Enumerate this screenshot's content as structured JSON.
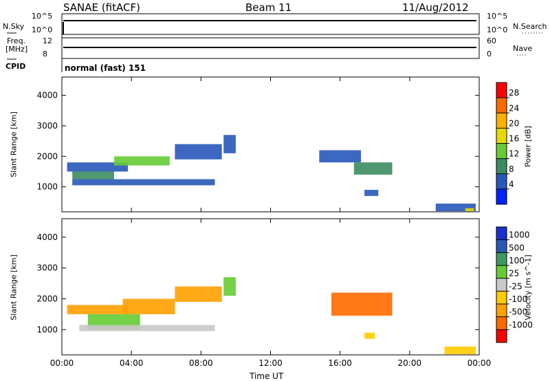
{
  "header": {
    "title": "SANAE (fitACF)",
    "beam": "Beam 11",
    "date": "11/Aug/2012"
  },
  "status_panels": {
    "nsky_label": "N.Sky",
    "nsearch_label": "N.Search",
    "noise_ticks_left": [
      "10^5",
      "10^0"
    ],
    "noise_ticks_right": [
      "10^5",
      "10^0"
    ],
    "freq_label": "Freq.",
    "freq_unit": "[MHz]",
    "freq_ticks": [
      "12",
      "8"
    ],
    "nave_label": "Nave",
    "nave_ticks": [
      "60",
      "0"
    ],
    "cpid_label": "CPID",
    "cpid_value": "normal (fast) 151"
  },
  "chart_data": [
    {
      "type": "heatmap",
      "name": "power",
      "ylabel": "Slant Range [km]",
      "xlabel": "Time UT",
      "yticks": [
        "4000",
        "3000",
        "2000",
        "1000"
      ],
      "ylim": [
        180,
        4600
      ],
      "xlim": [
        0,
        24
      ],
      "xticks": [
        "00:00",
        "04:00",
        "08:00",
        "12:00",
        "16:00",
        "20:00",
        "00:00"
      ],
      "colorbar": {
        "label": "Power [dB]",
        "ticks": [
          "28",
          "24",
          "20",
          "16",
          "12",
          "8",
          "4"
        ],
        "colors": [
          "#ff0000",
          "#ff6a00",
          "#ffb000",
          "#e8d800",
          "#66cc33",
          "#3c8c60",
          "#2858b8",
          "#0020ff"
        ]
      },
      "regions": [
        {
          "t0": 0.3,
          "t1": 3.8,
          "r0": 1500,
          "r1": 1800,
          "color": "#2858b8"
        },
        {
          "t0": 0.6,
          "t1": 3.0,
          "r0": 1250,
          "r1": 1500,
          "color": "#3c8c60"
        },
        {
          "t0": 0.6,
          "t1": 8.8,
          "r0": 1050,
          "r1": 1250,
          "color": "#2858b8"
        },
        {
          "t0": 3.0,
          "t1": 6.2,
          "r0": 1700,
          "r1": 2000,
          "color": "#66cc33"
        },
        {
          "t0": 6.5,
          "t1": 9.2,
          "r0": 1900,
          "r1": 2400,
          "color": "#2858b8"
        },
        {
          "t0": 9.3,
          "t1": 10.0,
          "r0": 2100,
          "r1": 2700,
          "color": "#2858b8"
        },
        {
          "t0": 14.8,
          "t1": 17.2,
          "r0": 1800,
          "r1": 2200,
          "color": "#2858b8"
        },
        {
          "t0": 16.8,
          "t1": 19.0,
          "r0": 1400,
          "r1": 1800,
          "color": "#3c8c60"
        },
        {
          "t0": 17.4,
          "t1": 18.2,
          "r0": 700,
          "r1": 900,
          "color": "#2858b8"
        },
        {
          "t0": 21.5,
          "t1": 23.8,
          "r0": 200,
          "r1": 450,
          "color": "#2858b8"
        },
        {
          "t0": 23.2,
          "t1": 23.7,
          "r0": 200,
          "r1": 300,
          "color": "#e8d800"
        }
      ]
    },
    {
      "type": "heatmap",
      "name": "velocity",
      "ylabel": "Slant Range [km]",
      "xlabel": "Time UT",
      "yticks": [
        "4000",
        "3000",
        "2000",
        "1000"
      ],
      "ylim": [
        180,
        4600
      ],
      "xlim": [
        0,
        24
      ],
      "xticks": [
        "00:00",
        "04:00",
        "08:00",
        "12:00",
        "16:00",
        "20:00",
        "00:00"
      ],
      "colorbar": {
        "label": "Velocity [m s^-1]",
        "ticks": [
          "1000",
          "500",
          "100",
          "25",
          "-25",
          "-100",
          "-500",
          "-1000"
        ],
        "colors": [
          "#1830d0",
          "#2858b8",
          "#3c9a60",
          "#66cc33",
          "#c8c8c8",
          "#ffcc00",
          "#ffa000",
          "#ff6a00",
          "#ff0000"
        ]
      },
      "regions": [
        {
          "t0": 0.3,
          "t1": 3.8,
          "r0": 1500,
          "r1": 1800,
          "color": "#ffa000"
        },
        {
          "t0": 1.5,
          "t1": 4.5,
          "r0": 1000,
          "r1": 1500,
          "color": "#66cc33"
        },
        {
          "t0": 1.0,
          "t1": 8.8,
          "r0": 950,
          "r1": 1150,
          "color": "#c8c8c8"
        },
        {
          "t0": 3.5,
          "t1": 6.5,
          "r0": 1500,
          "r1": 2000,
          "color": "#ffa000"
        },
        {
          "t0": 6.5,
          "t1": 9.2,
          "r0": 1900,
          "r1": 2400,
          "color": "#ffa000"
        },
        {
          "t0": 9.3,
          "t1": 10.0,
          "r0": 2100,
          "r1": 2700,
          "color": "#66cc33"
        },
        {
          "t0": 15.5,
          "t1": 19.0,
          "r0": 1450,
          "r1": 2200,
          "color": "#ff6a00"
        },
        {
          "t0": 17.4,
          "t1": 18.0,
          "r0": 700,
          "r1": 900,
          "color": "#ffcc00"
        },
        {
          "t0": 22.0,
          "t1": 23.8,
          "r0": 200,
          "r1": 450,
          "color": "#ffcc00"
        }
      ]
    }
  ]
}
